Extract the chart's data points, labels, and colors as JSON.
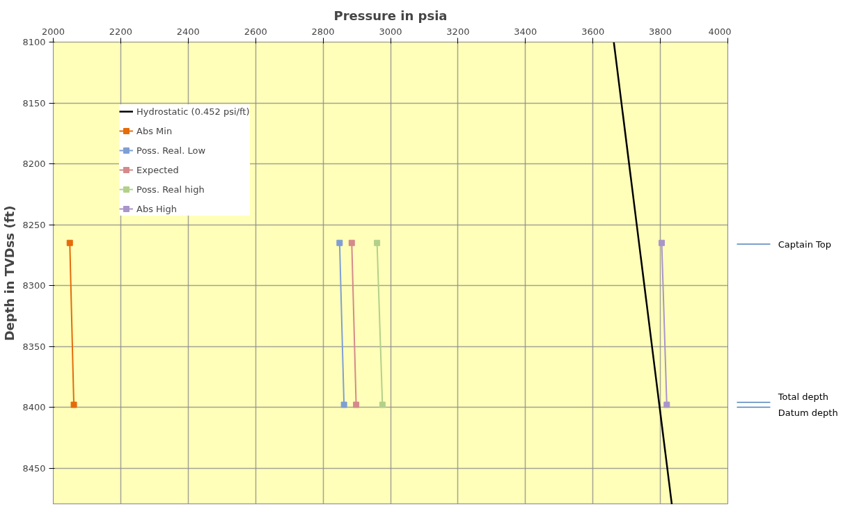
{
  "chart_data": {
    "type": "line",
    "xlabel": "Pressure in psia",
    "ylabel": "Depth in TVDss (ft)",
    "xlim": [
      2000,
      4000
    ],
    "xticks": [
      2000,
      2200,
      2400,
      2600,
      2800,
      3000,
      3200,
      3400,
      3600,
      3800,
      4000
    ],
    "ylim": [
      8480,
      8100
    ],
    "yticks": [
      8100,
      8150,
      8200,
      8250,
      8300,
      8350,
      8400,
      8450
    ],
    "grid": true,
    "legend": "top left",
    "marker": "square",
    "line_style": "solid",
    "series": [
      {
        "name": "Hydrostatic (0.452 psi/ft)",
        "color": "#000000",
        "marker": "none",
        "x": [
          3662,
          3834
        ],
        "values": [
          8100,
          8480
        ]
      },
      {
        "name": "Abs Min",
        "color": "#e46c0a",
        "x": [
          2049,
          2061
        ],
        "values": [
          8265,
          8398
        ]
      },
      {
        "name": "Poss. Real. Low",
        "color": "#7f9fd3",
        "x": [
          2849,
          2862
        ],
        "values": [
          8265,
          8398
        ]
      },
      {
        "name": "Expected",
        "color": "#d48a8a",
        "x": [
          2885,
          2898
        ],
        "values": [
          8265,
          8398
        ]
      },
      {
        "name": "Poss. Real high",
        "color": "#b3d08a",
        "x": [
          2960,
          2976
        ],
        "values": [
          8265,
          8398
        ]
      },
      {
        "name": "Abs High",
        "color": "#a995c9",
        "x": [
          3804,
          3819
        ],
        "values": [
          8265,
          8398
        ]
      }
    ],
    "ref_lines": [
      {
        "axis": "y",
        "value": 8266,
        "label": "Captain Top",
        "color": "#4f81bd"
      },
      {
        "axis": "y",
        "value": 8396,
        "label": "Total depth",
        "color": "#4f81bd"
      },
      {
        "axis": "y",
        "value": 8400,
        "label": "Datum depth",
        "color": "#4f81bd"
      }
    ]
  }
}
